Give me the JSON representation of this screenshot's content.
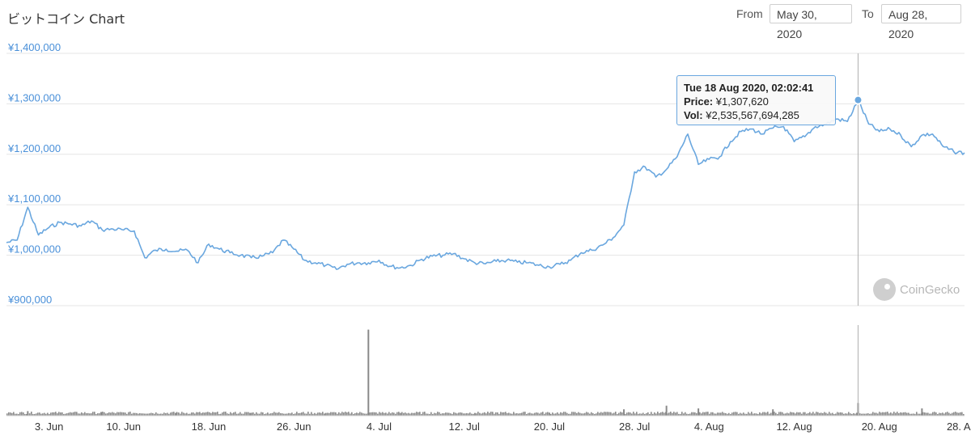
{
  "header": {
    "title": "ビットコイン Chart",
    "from_label": "From",
    "from_value": "May 30, 2020",
    "to_label": "To",
    "to_value": "Aug 28, 2020"
  },
  "watermark": {
    "text": "CoinGecko"
  },
  "tooltip": {
    "date": "Tue 18 Aug 2020, 02:02:41",
    "price_label": "Price:",
    "price_value": "¥1,307,620",
    "vol_label": "Vol:",
    "vol_value": "¥2,535,567,694,285"
  },
  "colors": {
    "price_line": "#6aa7df",
    "volume_bars": "#8a8a8a",
    "y_tick_text": "#4a90d9",
    "grid": "#e6e6e6",
    "crosshair": "#b0b0b0"
  },
  "chart_data": {
    "type": "line",
    "title": "ビットコイン Chart",
    "x_start": "2020-05-30",
    "x_end": "2020-08-28",
    "x_tick_labels": [
      "3. Jun",
      "10. Jun",
      "18. Jun",
      "26. Jun",
      "4. Jul",
      "12. Jul",
      "20. Jul",
      "28. Jul",
      "4. Aug",
      "12. Aug",
      "20. Aug",
      "28. Aug"
    ],
    "x_tick_dates": [
      "2020-06-03",
      "2020-06-10",
      "2020-06-18",
      "2020-06-26",
      "2020-07-04",
      "2020-07-12",
      "2020-07-20",
      "2020-07-28",
      "2020-08-04",
      "2020-08-12",
      "2020-08-20",
      "2020-08-28"
    ],
    "y_tick_labels": [
      "¥1,400,000",
      "¥1,300,000",
      "¥1,200,000",
      "¥1,100,000",
      "¥1,000,000",
      "¥900,000"
    ],
    "y_tick_values": [
      1400000,
      1300000,
      1200000,
      1100000,
      1000000,
      900000
    ],
    "ylim": [
      900000,
      1400000
    ],
    "grid": true,
    "legend": "none",
    "series": [
      {
        "name": "Price",
        "x": [
          "2020-05-30",
          "2020-05-31",
          "2020-06-01",
          "2020-06-02",
          "2020-06-03",
          "2020-06-04",
          "2020-06-05",
          "2020-06-06",
          "2020-06-07",
          "2020-06-08",
          "2020-06-09",
          "2020-06-10",
          "2020-06-11",
          "2020-06-12",
          "2020-06-13",
          "2020-06-14",
          "2020-06-15",
          "2020-06-16",
          "2020-06-17",
          "2020-06-18",
          "2020-06-19",
          "2020-06-20",
          "2020-06-21",
          "2020-06-22",
          "2020-06-23",
          "2020-06-24",
          "2020-06-25",
          "2020-06-26",
          "2020-06-27",
          "2020-06-28",
          "2020-06-29",
          "2020-06-30",
          "2020-07-01",
          "2020-07-02",
          "2020-07-03",
          "2020-07-04",
          "2020-07-05",
          "2020-07-06",
          "2020-07-07",
          "2020-07-08",
          "2020-07-09",
          "2020-07-10",
          "2020-07-11",
          "2020-07-12",
          "2020-07-13",
          "2020-07-14",
          "2020-07-15",
          "2020-07-16",
          "2020-07-17",
          "2020-07-18",
          "2020-07-19",
          "2020-07-20",
          "2020-07-21",
          "2020-07-22",
          "2020-07-23",
          "2020-07-24",
          "2020-07-25",
          "2020-07-26",
          "2020-07-27",
          "2020-07-28",
          "2020-07-29",
          "2020-07-30",
          "2020-07-31",
          "2020-08-01",
          "2020-08-02",
          "2020-08-03",
          "2020-08-04",
          "2020-08-05",
          "2020-08-06",
          "2020-08-07",
          "2020-08-08",
          "2020-08-09",
          "2020-08-10",
          "2020-08-11",
          "2020-08-12",
          "2020-08-13",
          "2020-08-14",
          "2020-08-15",
          "2020-08-16",
          "2020-08-17",
          "2020-08-18",
          "2020-08-19",
          "2020-08-20",
          "2020-08-21",
          "2020-08-22",
          "2020-08-23",
          "2020-08-24",
          "2020-08-25",
          "2020-08-26",
          "2020-08-27",
          "2020-08-28"
        ],
        "values": [
          1025000,
          1030000,
          1095000,
          1040000,
          1055000,
          1065000,
          1062000,
          1058000,
          1068000,
          1050000,
          1052000,
          1050000,
          1048000,
          995000,
          1010000,
          1012000,
          1008000,
          1010000,
          985000,
          1022000,
          1012000,
          1005000,
          1000000,
          995000,
          998000,
          1005000,
          1030000,
          1012000,
          990000,
          985000,
          980000,
          972000,
          982000,
          985000,
          985000,
          990000,
          978000,
          975000,
          980000,
          992000,
          998000,
          1000000,
          1003000,
          993000,
          985000,
          983000,
          988000,
          990000,
          986000,
          985000,
          980000,
          977000,
          982000,
          990000,
          1005000,
          1010000,
          1020000,
          1035000,
          1060000,
          1165000,
          1175000,
          1155000,
          1170000,
          1195000,
          1240000,
          1180000,
          1190000,
          1195000,
          1225000,
          1245000,
          1250000,
          1240000,
          1252000,
          1255000,
          1225000,
          1235000,
          1255000,
          1260000,
          1270000,
          1265000,
          1307620,
          1260000,
          1245000,
          1250000,
          1238000,
          1215000,
          1238000,
          1240000,
          1215000,
          1205000,
          1203000
        ]
      }
    ],
    "volume": {
      "x": [
        "2020-06-01",
        "2020-06-08",
        "2020-06-15",
        "2020-06-22",
        "2020-06-29",
        "2020-07-03",
        "2020-07-06",
        "2020-07-13",
        "2020-07-20",
        "2020-07-27",
        "2020-07-31",
        "2020-08-03",
        "2020-08-10",
        "2020-08-18",
        "2020-08-24"
      ],
      "values": [
        5,
        4,
        4,
        3,
        3,
        95,
        3,
        3,
        3,
        7,
        11,
        8,
        7,
        14,
        8
      ],
      "unit": "relative"
    },
    "hover": {
      "date": "2020-08-18",
      "price": 1307620,
      "volume": 2535567694285
    }
  }
}
